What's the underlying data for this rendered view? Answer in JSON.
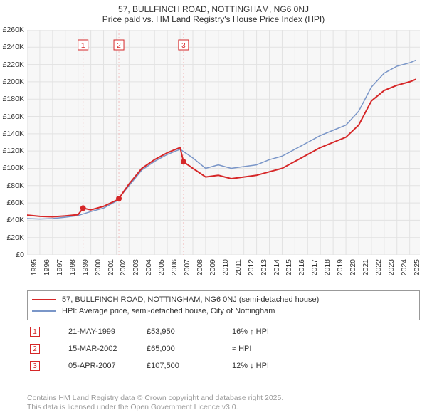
{
  "title_line1": "57, BULLFINCH ROAD, NOTTINGHAM, NG6 0NJ",
  "title_line2": "Price paid vs. HM Land Registry's House Price Index (HPI)",
  "chart": {
    "type": "line",
    "background_color": "#f7f7f7",
    "grid_color": "#e2e2e2",
    "x_range": [
      1995,
      2025.8
    ],
    "xticks": [
      1995,
      1996,
      1997,
      1998,
      1999,
      2000,
      2001,
      2002,
      2003,
      2004,
      2005,
      2006,
      2007,
      2008,
      2009,
      2010,
      2011,
      2012,
      2013,
      2014,
      2015,
      2016,
      2017,
      2018,
      2019,
      2020,
      2021,
      2022,
      2023,
      2024,
      2025
    ],
    "xtick_rotation": -90,
    "y_range": [
      0,
      260000
    ],
    "yticks": [
      0,
      20000,
      40000,
      60000,
      80000,
      100000,
      120000,
      140000,
      160000,
      180000,
      200000,
      220000,
      240000,
      260000
    ],
    "ytick_labels": [
      "£0",
      "£20K",
      "£40K",
      "£60K",
      "£80K",
      "£100K",
      "£120K",
      "£140K",
      "£160K",
      "£180K",
      "£200K",
      "£220K",
      "£240K",
      "£260K"
    ],
    "series": {
      "red": {
        "label": "57, BULLFINCH ROAD, NOTTINGHAM, NG6 0NJ (semi-detached house)",
        "color": "#d62728",
        "stroke_width": 2,
        "points": [
          [
            1995,
            46000
          ],
          [
            1996,
            44500
          ],
          [
            1997,
            44000
          ],
          [
            1998,
            45000
          ],
          [
            1999,
            46500
          ],
          [
            1999.4,
            53950
          ],
          [
            2000,
            52000
          ],
          [
            2001,
            56000
          ],
          [
            2002,
            63000
          ],
          [
            2002.2,
            65000
          ],
          [
            2003,
            82000
          ],
          [
            2004,
            100000
          ],
          [
            2005,
            110000
          ],
          [
            2006,
            118000
          ],
          [
            2007,
            124000
          ],
          [
            2007.27,
            107500
          ],
          [
            2008,
            100000
          ],
          [
            2009,
            90000
          ],
          [
            2010,
            92000
          ],
          [
            2011,
            88000
          ],
          [
            2012,
            90000
          ],
          [
            2013,
            92000
          ],
          [
            2014,
            96000
          ],
          [
            2015,
            100000
          ],
          [
            2016,
            108000
          ],
          [
            2017,
            116000
          ],
          [
            2018,
            124000
          ],
          [
            2019,
            130000
          ],
          [
            2020,
            136000
          ],
          [
            2021,
            150000
          ],
          [
            2022,
            178000
          ],
          [
            2023,
            190000
          ],
          [
            2024,
            196000
          ],
          [
            2025,
            200000
          ],
          [
            2025.5,
            203000
          ]
        ]
      },
      "blue": {
        "label": "HPI: Average price, semi-detached house, City of Nottingham",
        "color": "#7a96c8",
        "stroke_width": 1.5,
        "points": [
          [
            1995,
            42000
          ],
          [
            1996,
            41500
          ],
          [
            1997,
            42000
          ],
          [
            1998,
            43500
          ],
          [
            1999,
            45500
          ],
          [
            2000,
            50000
          ],
          [
            2001,
            54000
          ],
          [
            2002,
            62000
          ],
          [
            2003,
            80000
          ],
          [
            2004,
            98000
          ],
          [
            2005,
            108000
          ],
          [
            2006,
            116000
          ],
          [
            2007,
            122000
          ],
          [
            2008,
            112000
          ],
          [
            2009,
            100000
          ],
          [
            2010,
            104000
          ],
          [
            2011,
            100000
          ],
          [
            2012,
            102000
          ],
          [
            2013,
            104000
          ],
          [
            2014,
            110000
          ],
          [
            2015,
            114000
          ],
          [
            2016,
            122000
          ],
          [
            2017,
            130000
          ],
          [
            2018,
            138000
          ],
          [
            2019,
            144000
          ],
          [
            2020,
            150000
          ],
          [
            2021,
            166000
          ],
          [
            2022,
            194000
          ],
          [
            2023,
            210000
          ],
          [
            2024,
            218000
          ],
          [
            2025,
            222000
          ],
          [
            2025.5,
            225000
          ]
        ]
      }
    },
    "event_markers": [
      {
        "n": "1",
        "x": 1999.39,
        "y": 53950,
        "color": "#d62728"
      },
      {
        "n": "2",
        "x": 2002.2,
        "y": 65000,
        "color": "#d62728"
      },
      {
        "n": "3",
        "x": 2007.27,
        "y": 107500,
        "color": "#d62728"
      }
    ],
    "event_line_color": "#f2bdbd",
    "event_line_dash": "2,3"
  },
  "legend": {
    "border_color": "#999999",
    "items": [
      {
        "color": "#d62728",
        "stroke_width": 2,
        "label_key": "chart.series.red.label"
      },
      {
        "color": "#7a96c8",
        "stroke_width": 1.5,
        "label_key": "chart.series.blue.label"
      }
    ]
  },
  "events_table": [
    {
      "n": "1",
      "color": "#d62728",
      "date": "21-MAY-1999",
      "price": "£53,950",
      "diff": "16% ↑ HPI"
    },
    {
      "n": "2",
      "color": "#d62728",
      "date": "15-MAR-2002",
      "price": "£65,000",
      "diff": "≈ HPI"
    },
    {
      "n": "3",
      "color": "#d62728",
      "date": "05-APR-2007",
      "price": "£107,500",
      "diff": "12% ↓ HPI"
    }
  ],
  "footer_line1": "Contains HM Land Registry data © Crown copyright and database right 2025.",
  "footer_line2": "This data is licensed under the Open Government Licence v3.0.",
  "font_sizes": {
    "title": 12,
    "tick": 10.5,
    "legend": 11,
    "events": 11,
    "footer": 10.5
  }
}
